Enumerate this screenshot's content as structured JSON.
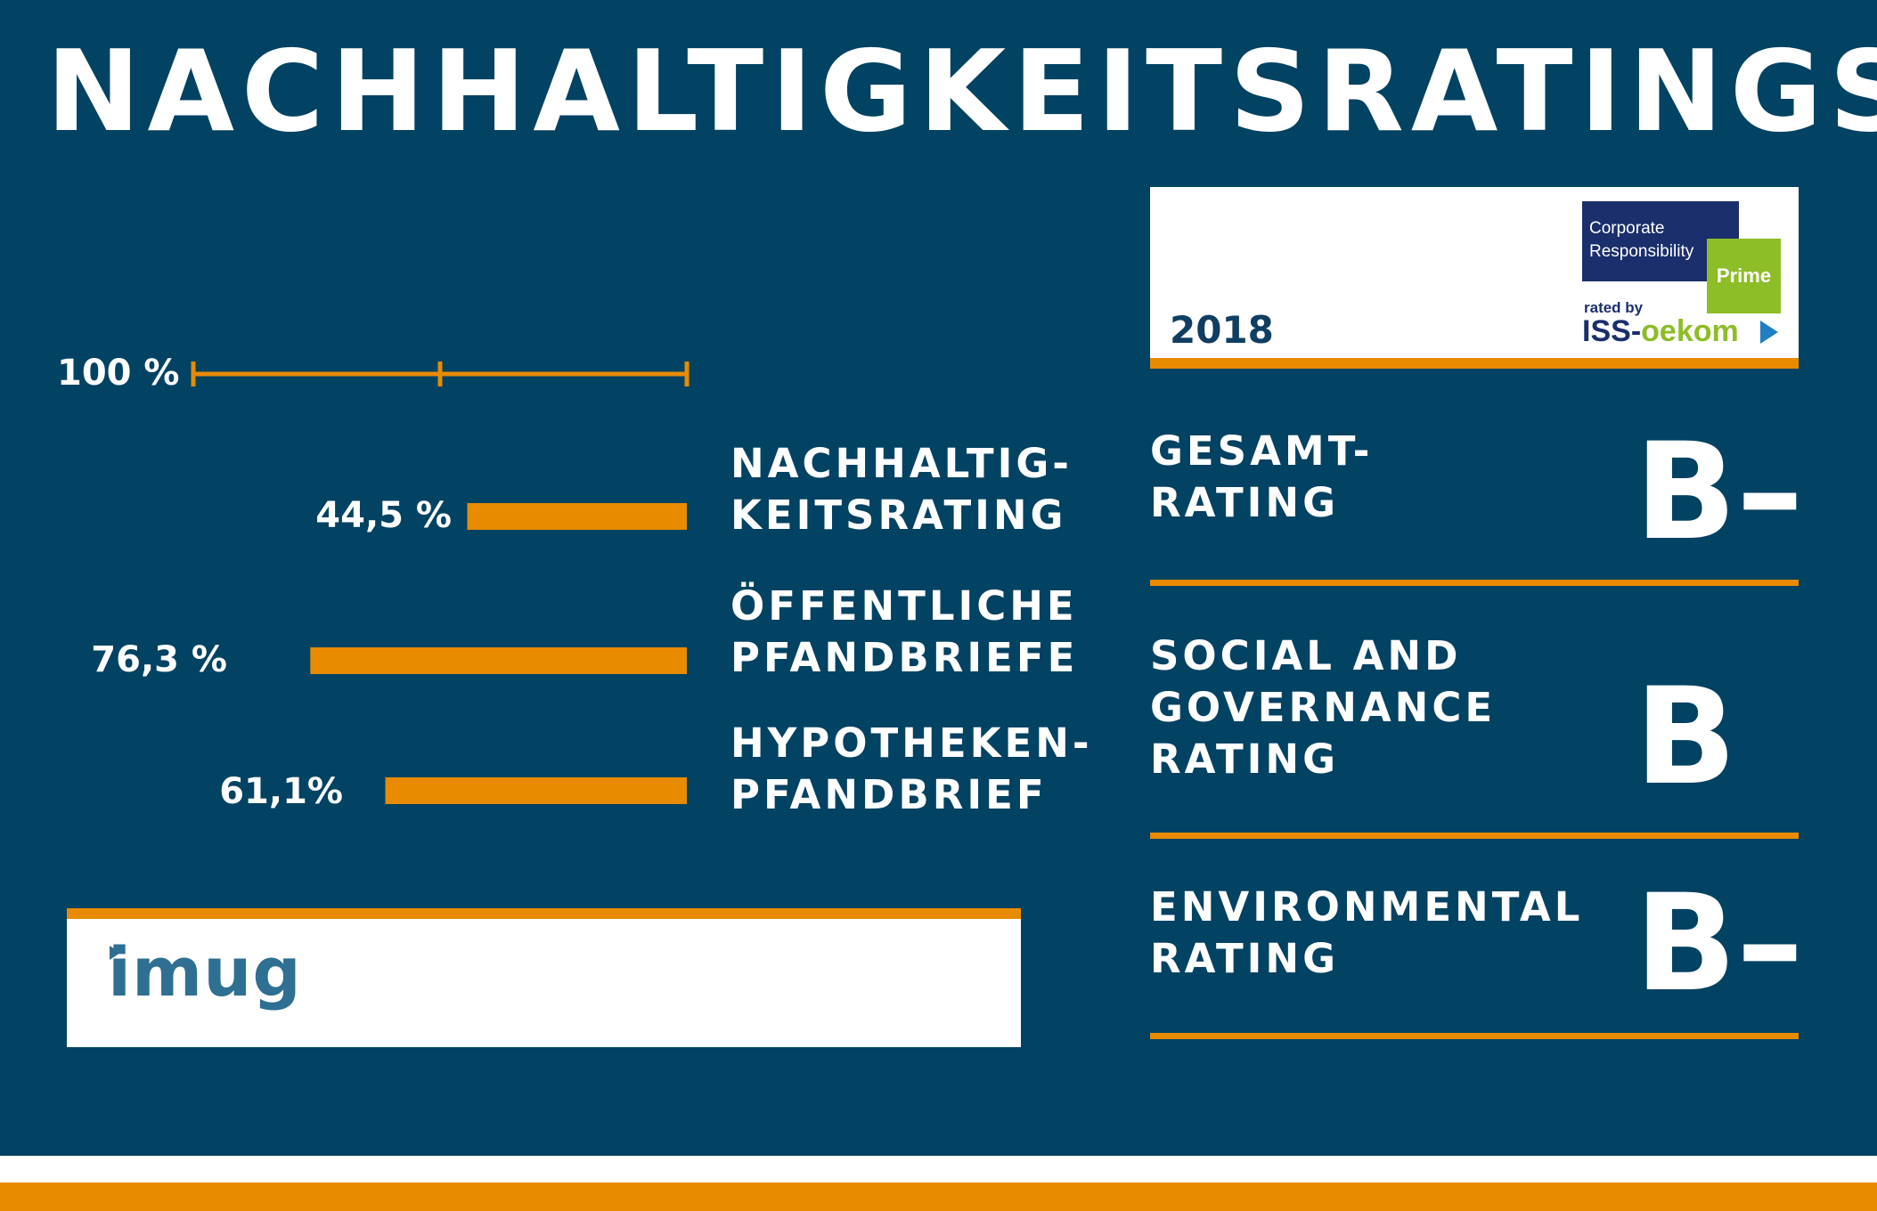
{
  "title": "NACHHALTIGKEITSRATINGS",
  "colors": {
    "panel": "#024262",
    "accent": "#e88b00",
    "text": "#ffffff"
  },
  "chart_data": {
    "type": "bar",
    "orientation": "horizontal",
    "scale_label": "100 %",
    "xlim": [
      0,
      100
    ],
    "categories": [
      "NACHHALTIG-\nKEITSRATING",
      "ÖFFENTLICHE\nPFANDBRIEFE",
      "HYPOTHEKEN-\nPFANDBRIEF"
    ],
    "values": [
      44.5,
      76.3,
      61.1
    ],
    "value_labels": [
      "44,5 %",
      "76,3 %",
      "61,1%"
    ]
  },
  "imug": {
    "logo": "imug"
  },
  "badge": {
    "year": "2018",
    "line1": "Corporate\nResponsibility",
    "prime": "Prime",
    "rated_by": "rated by",
    "brand_a": "ISS",
    "brand_sep": "-",
    "brand_b": "oekom"
  },
  "ratings": [
    {
      "label": "GESAMT-\nRATING",
      "grade": "B–"
    },
    {
      "label": "SOCIAL AND\nGOVERNANCE\nRATING",
      "grade": "B"
    },
    {
      "label": "ENVIRONMENTAL\nRATING",
      "grade": "B–"
    }
  ]
}
